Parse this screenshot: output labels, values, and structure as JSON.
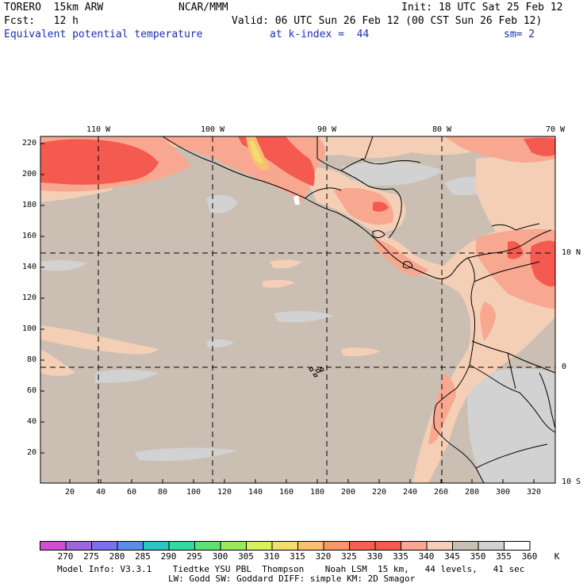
{
  "header": {
    "model": "TORERO  15km ARW",
    "center": "NCAR/MMM",
    "init": "Init: 18 UTC Sat 25 Feb 12",
    "fcst": "Fcst:   12 h",
    "valid": "Valid: 06 UTC Sun 26 Feb 12 (00 CST Sun 26 Feb 12)",
    "field": "Equivalent potential temperature",
    "level": "at k-index =  44",
    "smoothing": "sm= 2"
  },
  "map": {
    "top_lon_labels": [
      "110 W",
      "100 W",
      "90 W",
      "80 W",
      "70 W"
    ],
    "right_lat_labels": [
      "10 N",
      "0",
      "10 S"
    ],
    "y_ticks": [
      "220",
      "200",
      "180",
      "160",
      "140",
      "120",
      "100",
      "80",
      "60",
      "40",
      "20"
    ],
    "x_ticks": [
      "20",
      "40",
      "60",
      "80",
      "100",
      "120",
      "140",
      "160",
      "180",
      "200",
      "220",
      "240",
      "260",
      "280",
      "300",
      "320"
    ],
    "background_color": "#cbbfb3"
  },
  "colorbar": {
    "labels": [
      "270",
      "275",
      "280",
      "285",
      "290",
      "295",
      "300",
      "305",
      "310",
      "315",
      "320",
      "325",
      "330",
      "335",
      "340",
      "345",
      "350",
      "355",
      "360"
    ],
    "unit": "K",
    "colors": [
      "#d050d0",
      "#9a68d8",
      "#7a72ec",
      "#5a8ee6",
      "#2ec4c4",
      "#34d8a0",
      "#60e070",
      "#98e860",
      "#d8f060",
      "#f4dc70",
      "#f8c070",
      "#f89868",
      "#f46050",
      "#f45a50",
      "#f8a890",
      "#f4cfb6",
      "#cbbfb3",
      "#d2d2d2",
      "#ffffff"
    ]
  },
  "footer": {
    "line1": "Model Info: V3.3.1    Tiedtke YSU PBL  Thompson    Noah LSM  15 km,   44 levels,   41 sec",
    "line2": "LW: Godd SW: Goddard DIFF: simple KM: 2D Smagor"
  }
}
